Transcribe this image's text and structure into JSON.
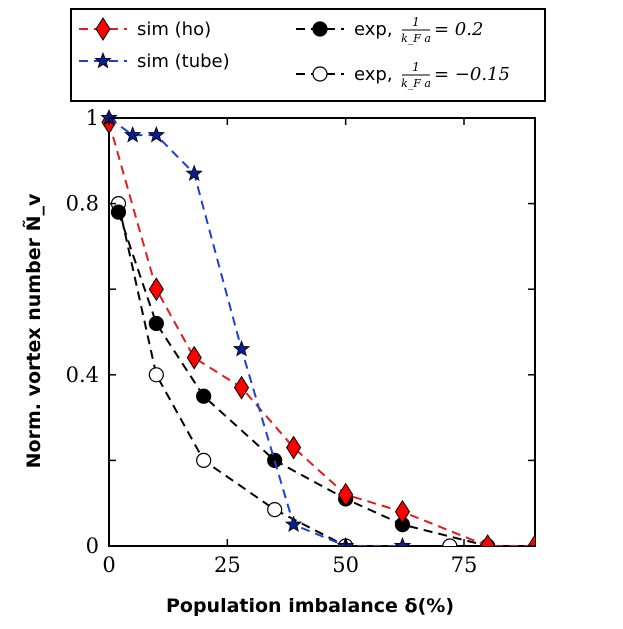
{
  "chart_data": {
    "type": "line",
    "title": "",
    "xlabel": "Population imbalance δ(%)",
    "ylabel": "Norm. vortex number Ñ_v",
    "xlim": [
      0,
      90
    ],
    "ylim": [
      0,
      1
    ],
    "x_ticks": [
      "0",
      "25",
      "50",
      "75"
    ],
    "y_ticks": [
      "0",
      "0.4",
      "0.8",
      "1"
    ],
    "grid": false,
    "legend_position": "top (outside plot)",
    "series": [
      {
        "name": "sim (ho)",
        "color": "#e41a1c",
        "marker": "thin_diamond",
        "marker_fill": "#ff0000",
        "linestyle": "dashed",
        "x": [
          0,
          10,
          18,
          28,
          39,
          50,
          62,
          80,
          90
        ],
        "y": [
          0.99,
          0.6,
          0.44,
          0.37,
          0.23,
          0.12,
          0.08,
          0.0,
          0.0
        ]
      },
      {
        "name": "sim (tube)",
        "color": "#1f3fd4",
        "marker": "star",
        "marker_fill": "#0a1e8c",
        "linestyle": "dashed",
        "x": [
          0,
          5,
          10,
          18,
          28,
          39,
          50,
          62
        ],
        "y": [
          1.0,
          0.96,
          0.96,
          0.87,
          0.46,
          0.05,
          0.0,
          0.0
        ]
      },
      {
        "name": "exp, 1/(k_F a) = 0.2",
        "color": "#000000",
        "marker": "circle",
        "marker_fill": "#000000",
        "linestyle": "dashed",
        "x": [
          2,
          10,
          20,
          35,
          50,
          62,
          80
        ],
        "y": [
          0.78,
          0.52,
          0.35,
          0.2,
          0.11,
          0.05,
          0.0
        ]
      },
      {
        "name": "exp, 1/(k_F a) = -0.15",
        "color": "#000000",
        "marker": "circle",
        "marker_fill": "#ffffff",
        "linestyle": "dashed",
        "x": [
          2,
          10,
          20,
          35,
          50,
          72
        ],
        "y": [
          0.8,
          0.4,
          0.2,
          0.085,
          0.0,
          0.0
        ]
      }
    ],
    "legend": {
      "entries": [
        {
          "label": "sim (ho)"
        },
        {
          "label": "sim (tube)"
        },
        {
          "label_prefix": "exp, ",
          "frac_num": "1",
          "frac_den": "k_F a",
          "rhs": "= 0.2"
        },
        {
          "label_prefix": "exp, ",
          "frac_num": "1",
          "frac_den": "k_F a",
          "rhs": "= −0.15"
        }
      ]
    }
  }
}
